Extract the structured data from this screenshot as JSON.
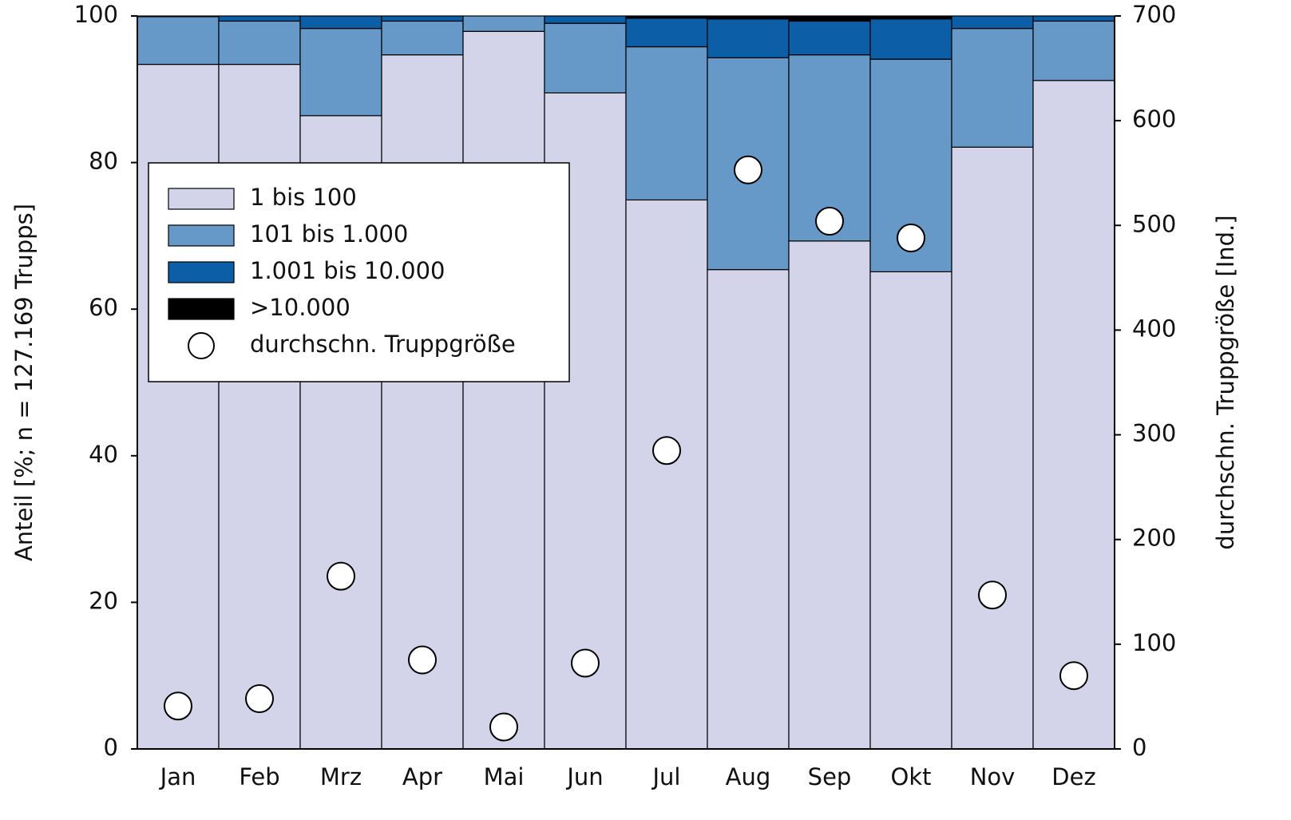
{
  "chart_data": {
    "type": "bar",
    "stacked": true,
    "ylabel": "Anteil [%; n = 127.169 Trupps]",
    "y2label": "durchschn. Truppgröße [Ind.]",
    "categories": [
      "Jan",
      "Feb",
      "Mrz",
      "Apr",
      "Mai",
      "Jun",
      "Jul",
      "Aug",
      "Sep",
      "Okt",
      "Nov",
      "Dez"
    ],
    "series": [
      {
        "name": "1 bis 100",
        "color": "#d3d4ea",
        "values": [
          93.4,
          93.4,
          86.4,
          94.7,
          97.9,
          89.5,
          74.9,
          65.4,
          69.3,
          65.1,
          82.1,
          91.2
        ]
      },
      {
        "name": "101 bis 1.000",
        "color": "#6699c7",
        "values": [
          6.5,
          5.9,
          11.9,
          4.6,
          2.1,
          9.5,
          20.9,
          28.9,
          25.4,
          29.0,
          16.2,
          8.1
        ]
      },
      {
        "name": "1.001 bis 10.000",
        "color": "#0c5ea6",
        "values": [
          0.1,
          0.7,
          1.7,
          0.7,
          0,
          1.0,
          3.9,
          5.3,
          4.6,
          5.5,
          1.7,
          0.7
        ]
      },
      {
        "name": ">10.000",
        "color": "#000000",
        "values": [
          0,
          0,
          0,
          0,
          0,
          0,
          0.3,
          0.4,
          0.7,
          0.4,
          0,
          0
        ]
      },
      {
        "name": "durchschn. Truppgröße",
        "type": "scatter",
        "axis": "y2",
        "color": "#ffffff",
        "values": [
          41,
          48,
          165,
          85,
          21,
          82,
          285,
          553,
          504,
          488,
          147,
          70
        ]
      }
    ],
    "ylim": [
      0,
      100
    ],
    "yticks": [
      0,
      20,
      40,
      60,
      80,
      100
    ],
    "y2lim": [
      0,
      700
    ],
    "y2ticks": [
      0,
      100,
      200,
      300,
      400,
      500,
      600,
      700
    ],
    "legend": "upper left"
  }
}
